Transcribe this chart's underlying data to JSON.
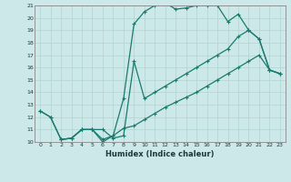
{
  "xlabel": "Humidex (Indice chaleur)",
  "bg_color": "#cce8e8",
  "line_color": "#1a7a6e",
  "grid_color": "#b0d4d0",
  "xlim": [
    -0.5,
    23.5
  ],
  "ylim": [
    10,
    21
  ],
  "xticks": [
    0,
    1,
    2,
    3,
    4,
    5,
    6,
    7,
    8,
    9,
    10,
    11,
    12,
    13,
    14,
    15,
    16,
    17,
    18,
    19,
    20,
    21,
    22,
    23
  ],
  "yticks": [
    10,
    11,
    12,
    13,
    14,
    15,
    16,
    17,
    18,
    19,
    20,
    21
  ],
  "line1_x": [
    0,
    1,
    2,
    3,
    4,
    5,
    6,
    7,
    8,
    9,
    10,
    11,
    12,
    13,
    14,
    15,
    16,
    17,
    18,
    19,
    20,
    21,
    22,
    23
  ],
  "line1_y": [
    12.5,
    12.0,
    10.2,
    10.3,
    11.0,
    11.0,
    10.0,
    10.5,
    13.5,
    19.5,
    20.5,
    21.0,
    21.2,
    20.7,
    20.8,
    21.0,
    21.0,
    21.0,
    19.7,
    20.3,
    19.0,
    18.3,
    15.8,
    15.5
  ],
  "line2_x": [
    0,
    1,
    2,
    3,
    4,
    5,
    6,
    7,
    8,
    9,
    10,
    11,
    12,
    13,
    14,
    15,
    16,
    17,
    18,
    19,
    20,
    21,
    22,
    23
  ],
  "line2_y": [
    12.5,
    12.0,
    10.2,
    10.3,
    11.0,
    11.0,
    10.2,
    10.5,
    11.1,
    11.3,
    11.8,
    12.3,
    12.8,
    13.2,
    13.6,
    14.0,
    14.5,
    15.0,
    15.5,
    16.0,
    16.5,
    17.0,
    15.8,
    15.5
  ],
  "line3_x": [
    2,
    3,
    4,
    5,
    6,
    7,
    8,
    9,
    10,
    11,
    12,
    13,
    14,
    15,
    16,
    17,
    18,
    19,
    20,
    21,
    22,
    23
  ],
  "line3_y": [
    10.2,
    10.3,
    11.0,
    11.0,
    11.0,
    10.3,
    10.5,
    16.5,
    13.5,
    14.0,
    14.5,
    15.0,
    15.5,
    16.0,
    16.5,
    17.0,
    17.5,
    18.5,
    19.0,
    18.3,
    15.8,
    15.5
  ]
}
